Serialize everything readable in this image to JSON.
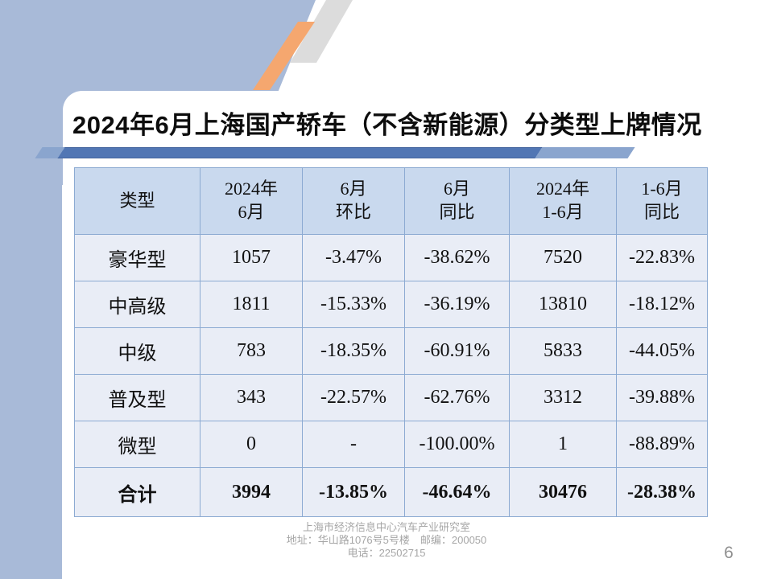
{
  "slide": {
    "title": "2024年6月上海国产轿车（不含新能源）分类型上牌情况",
    "page_number": "6",
    "footer": {
      "line1": "上海市经济信息中心汽车产业研究室",
      "line2": "地址：华山路1076号5号楼　邮编：200050",
      "line3": "电话：22502715"
    }
  },
  "table": {
    "headers": [
      [
        "类型"
      ],
      [
        "2024年",
        "6月"
      ],
      [
        "6月",
        "环比"
      ],
      [
        "6月",
        "同比"
      ],
      [
        "2024年",
        "1-6月"
      ],
      [
        "1-6月",
        "同比"
      ]
    ],
    "rows": [
      [
        "豪华型",
        "1057",
        "-3.47%",
        "-38.62%",
        "7520",
        "-22.83%"
      ],
      [
        "中高级",
        "1811",
        "-15.33%",
        "-36.19%",
        "13810",
        "-18.12%"
      ],
      [
        "中级",
        "783",
        "-18.35%",
        "-60.91%",
        "5833",
        "-44.05%"
      ],
      [
        "普及型",
        "343",
        "-22.57%",
        "-62.76%",
        "3312",
        "-39.88%"
      ],
      [
        "微型",
        "0",
        "-",
        "-100.00%",
        "1",
        "-88.89%"
      ]
    ],
    "total_row": [
      "合计",
      "3994",
      "-13.85%",
      "-46.64%",
      "30476",
      "-28.38%"
    ]
  },
  "colors": {
    "background_blue": "#a8bad8",
    "band_dark_blue": "#5176b4",
    "band_light_blue": "#8aa5ce",
    "stripe_orange": "#f5a76f",
    "stripe_gray": "#dcdcdc",
    "table_header_bg": "#c9d9ee",
    "table_row_bg": "#e9edf6",
    "table_border": "#8caad2",
    "footer_gray": "#a6a6a6"
  }
}
